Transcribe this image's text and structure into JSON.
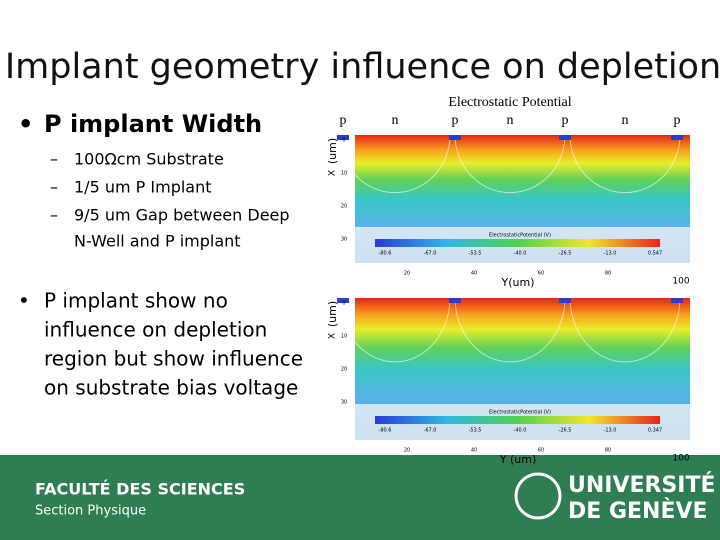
{
  "title": "Implant geometry influence on depletion",
  "bullets": [
    {
      "text": "P implant Width",
      "subs": [
        [
          "100Ωcm Substrate"
        ],
        [
          "1/5 um P Implant"
        ],
        [
          "9/5 um Gap between Deep",
          "N-Well and P implant"
        ]
      ]
    },
    {
      "lines": [
        "P implant show no",
        "influence on depletion",
        "region but show influence",
        "on substrate bias voltage"
      ]
    }
  ],
  "figure": {
    "title": "Electrostatic Potential",
    "implant_labels": [
      "p",
      "n",
      "p",
      "n",
      "p",
      "n",
      "p"
    ],
    "panels": [
      {
        "y_axis_label": "(um)",
        "x_axis_label": "X",
        "x_label": "Y(um)",
        "x_max_label": "100",
        "colorbar_title": "ElectrostaticPotential (V)",
        "colorbar_ticks": [
          "-80.6",
          "-67.0",
          "-53.5",
          "-40.0",
          "-26.5",
          "-13.0",
          "0.547"
        ],
        "x_ticks": [
          "20",
          "40",
          "60",
          "80"
        ],
        "y_ticks": [
          "0",
          "10",
          "20",
          "30"
        ]
      },
      {
        "y_axis_label": "(um)",
        "x_axis_label": "X",
        "x_label": "Y (um)",
        "x_max_label": "100",
        "colorbar_title": "ElectrostaticPotential (V)",
        "colorbar_ticks": [
          "-80.6",
          "-67.0",
          "-53.5",
          "-40.0",
          "-26.5",
          "-13.0",
          "0.347"
        ],
        "x_ticks": [
          "20",
          "40",
          "60",
          "80"
        ],
        "y_ticks": [
          "0",
          "10",
          "20",
          "30"
        ]
      }
    ]
  },
  "footer": {
    "faculty": "FACULTÉ DES SCIENCES",
    "section": "Section Physique",
    "university": [
      "UNIVERSITÉ",
      "DE GENÈVE"
    ]
  }
}
